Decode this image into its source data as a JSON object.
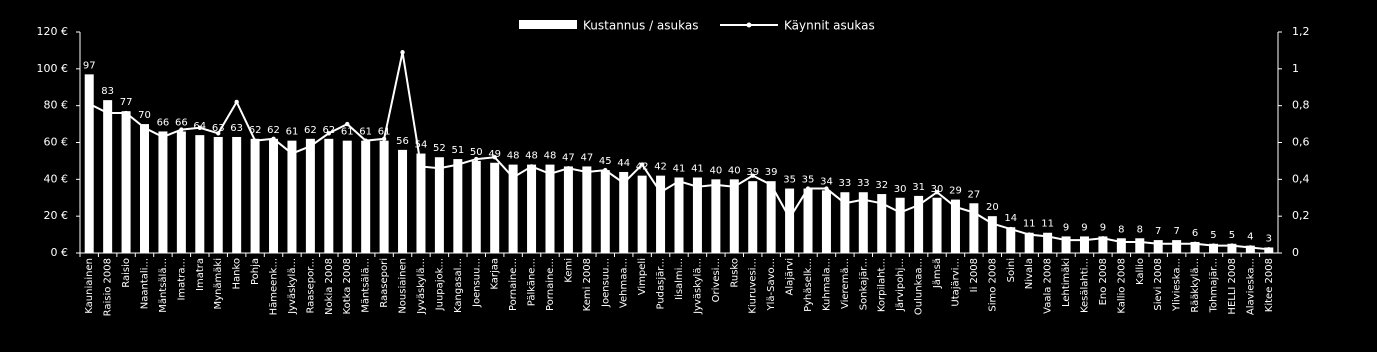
{
  "chart_data": {
    "type": "bar",
    "categories": [
      "Kauniainen",
      "Raisio 2008",
      "Raisio",
      "Naantali...",
      "Mäntsälä...",
      "Imatra...",
      "Imatra",
      "Mynämäki",
      "Hanko",
      "Pohja",
      "Hämeenk...",
      "Jyväskylä...",
      "Raasepor...",
      "Nokia 2008",
      "Kotka 2008",
      "Mäntsälä...",
      "Raasepori",
      "Nousiainen",
      "Jyväskylä...",
      "Juupajok...",
      "Kangasal...",
      "Joensuu...",
      "Karjaa",
      "Pornaine...",
      "Pälkäne...",
      "Pornaine...",
      "Kemi",
      "Kemi 2008",
      "Joensuu...",
      "Vehmaa...",
      "Vimpeli",
      "Pudasjär...",
      "Iisalmi...",
      "Jyväskylä...",
      "Orivesi...",
      "Rusko",
      "Kiuruvesi...",
      "Ylä-Savo...",
      "Alajärvi",
      "Pyhäselk...",
      "Kuhmala...",
      "Vieremä...",
      "Sonkajär...",
      "Korpilaht...",
      "Järvipohj...",
      "Oulunkaa...",
      "Jämsä",
      "Utajärvi...",
      "Ii 2008",
      "Simo 2008",
      "Soini",
      "Nivala",
      "Vaala 2008",
      "Lehtimäki",
      "Kesälahti...",
      "Eno 2008",
      "Kallio 2008",
      "Kallio",
      "Sievi 2008",
      "Ylivieska...",
      "Rääkkylä...",
      "Tohmajär...",
      "HELLI 2008",
      "Alavieska...",
      "Kitee 2008"
    ],
    "series": [
      {
        "name": "Kustannus / asukas",
        "type": "bar",
        "color": "#ffffff",
        "axis": "y",
        "values": [
          97,
          83,
          77,
          70,
          66,
          66,
          64,
          63,
          63,
          62,
          62,
          61,
          62,
          62,
          61,
          61,
          61,
          56,
          54,
          52,
          51,
          50,
          49,
          48,
          48,
          48,
          47,
          47,
          45,
          44,
          42,
          42,
          41,
          41,
          40,
          40,
          39,
          39,
          35,
          35,
          34,
          33,
          33,
          32,
          30,
          31,
          30,
          29,
          27,
          20,
          14,
          11,
          11,
          9,
          9,
          9,
          8,
          8,
          7,
          7,
          6,
          5,
          5,
          4,
          3
        ]
      },
      {
        "name": "Käynnit asukas",
        "type": "line",
        "color": "#ffffff",
        "axis": "y2",
        "values": [
          0.81,
          0.76,
          0.76,
          0.68,
          0.63,
          0.67,
          0.68,
          0.65,
          0.82,
          0.61,
          0.62,
          0.54,
          0.58,
          0.65,
          0.7,
          0.61,
          0.62,
          1.09,
          0.47,
          0.46,
          0.48,
          0.51,
          0.52,
          0.41,
          0.47,
          0.43,
          0.46,
          0.44,
          0.45,
          0.38,
          0.48,
          0.33,
          0.39,
          0.36,
          0.37,
          0.36,
          0.42,
          0.37,
          0.19,
          0.35,
          0.35,
          0.27,
          0.29,
          0.27,
          0.22,
          0.26,
          0.33,
          0.25,
          0.22,
          0.16,
          0.13,
          0.1,
          0.09,
          0.07,
          0.07,
          0.08,
          0.06,
          0.06,
          0.05,
          0.05,
          0.05,
          0.04,
          0.04,
          0.03,
          0.02
        ]
      }
    ],
    "ylim": [
      0,
      120
    ],
    "yticks": [
      {
        "value": 0,
        "label": "0 €"
      },
      {
        "value": 20,
        "label": "20 €"
      },
      {
        "value": 40,
        "label": "40 €"
      },
      {
        "value": 60,
        "label": "60 €"
      },
      {
        "value": 80,
        "label": "80 €"
      },
      {
        "value": 100,
        "label": "100 €"
      },
      {
        "value": 120,
        "label": "120 €"
      }
    ],
    "y2lim": [
      0,
      1.2
    ],
    "y2ticks": [
      0,
      {
        "value": 0.2,
        "label": "0,2"
      },
      {
        "value": 0.4,
        "label": "0,4"
      },
      {
        "value": 0.6,
        "label": "0,6"
      },
      {
        "value": 0.8,
        "label": "0,8"
      },
      {
        "value": 1,
        "label": "1"
      },
      {
        "value": 1.2,
        "label": "1,2"
      }
    ],
    "legend": "top"
  }
}
